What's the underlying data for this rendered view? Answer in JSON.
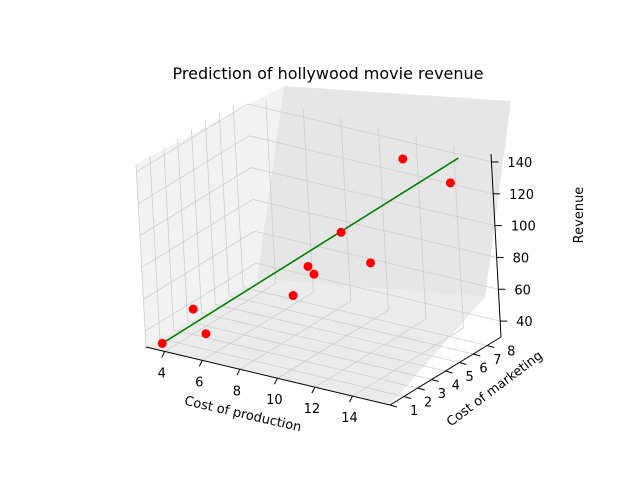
{
  "chart_data": {
    "type": "scatter",
    "projection": "3d",
    "title": "Prediction of hollywood movie revenue",
    "xlabel": "Cost of production",
    "ylabel": "Cost of marketing",
    "zlabel": "Revenue",
    "xlim": [
      3,
      16
    ],
    "ylim": [
      1,
      9
    ],
    "zlim": [
      30,
      145
    ],
    "xticks": [
      4,
      6,
      8,
      10,
      12,
      14
    ],
    "yticks": [
      1,
      2,
      3,
      4,
      5,
      6,
      7,
      8
    ],
    "zticks": [
      40,
      60,
      80,
      100,
      120,
      140
    ],
    "grid": true,
    "series": [
      {
        "kind": "scatter",
        "color": "#ff0000",
        "x": [
          3.5,
          4.5,
          5.5,
          8.0,
          8.5,
          8.8,
          10.0,
          11.5,
          12.0,
          14.5
        ],
        "y": [
          1.5,
          2.5,
          2.0,
          5.0,
          5.5,
          5.5,
          6.0,
          6.0,
          8.0,
          8.0
        ],
        "z": [
          31,
          50,
          40,
          55,
          72,
          68,
          95,
          80,
          136,
          128
        ]
      },
      {
        "kind": "line",
        "color": "#008000",
        "x": [
          3.5,
          15.0
        ],
        "y": [
          1.5,
          8.0
        ],
        "z": [
          31,
          145
        ]
      }
    ]
  }
}
